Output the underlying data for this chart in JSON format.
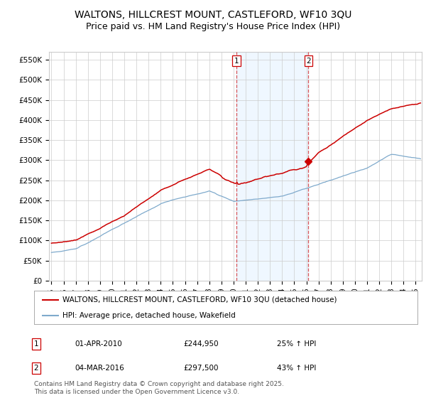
{
  "title": "WALTONS, HILLCREST MOUNT, CASTLEFORD, WF10 3QU",
  "subtitle": "Price paid vs. HM Land Registry's House Price Index (HPI)",
  "ylabel_ticks": [
    "£0",
    "£50K",
    "£100K",
    "£150K",
    "£200K",
    "£250K",
    "£300K",
    "£350K",
    "£400K",
    "£450K",
    "£500K",
    "£550K"
  ],
  "ytick_values": [
    0,
    50000,
    100000,
    150000,
    200000,
    250000,
    300000,
    350000,
    400000,
    450000,
    500000,
    550000
  ],
  "ylim": [
    0,
    570000
  ],
  "xlim_start": 1994.8,
  "xlim_end": 2025.5,
  "red_line_color": "#cc0000",
  "blue_line_color": "#7faacc",
  "vline_color": "#cc0000",
  "highlight_region_color": "#ddeeff",
  "highlight_region_alpha": 0.45,
  "marker1_x": 2010.25,
  "marker2_x": 2016.17,
  "legend_label_red": "WALTONS, HILLCREST MOUNT, CASTLEFORD, WF10 3QU (detached house)",
  "legend_label_blue": "HPI: Average price, detached house, Wakefield",
  "annotation1_label": "1",
  "annotation1_date": "01-APR-2010",
  "annotation1_price": "£244,950",
  "annotation1_hpi": "25% ↑ HPI",
  "annotation2_label": "2",
  "annotation2_date": "04-MAR-2016",
  "annotation2_price": "£297,500",
  "annotation2_hpi": "43% ↑ HPI",
  "footer_text": "Contains HM Land Registry data © Crown copyright and database right 2025.\nThis data is licensed under the Open Government Licence v3.0.",
  "background_color": "#ffffff",
  "grid_color": "#cccccc",
  "title_fontsize": 10,
  "subtitle_fontsize": 9,
  "tick_fontsize": 7.5,
  "legend_fontsize": 7.5,
  "footer_fontsize": 6.5
}
